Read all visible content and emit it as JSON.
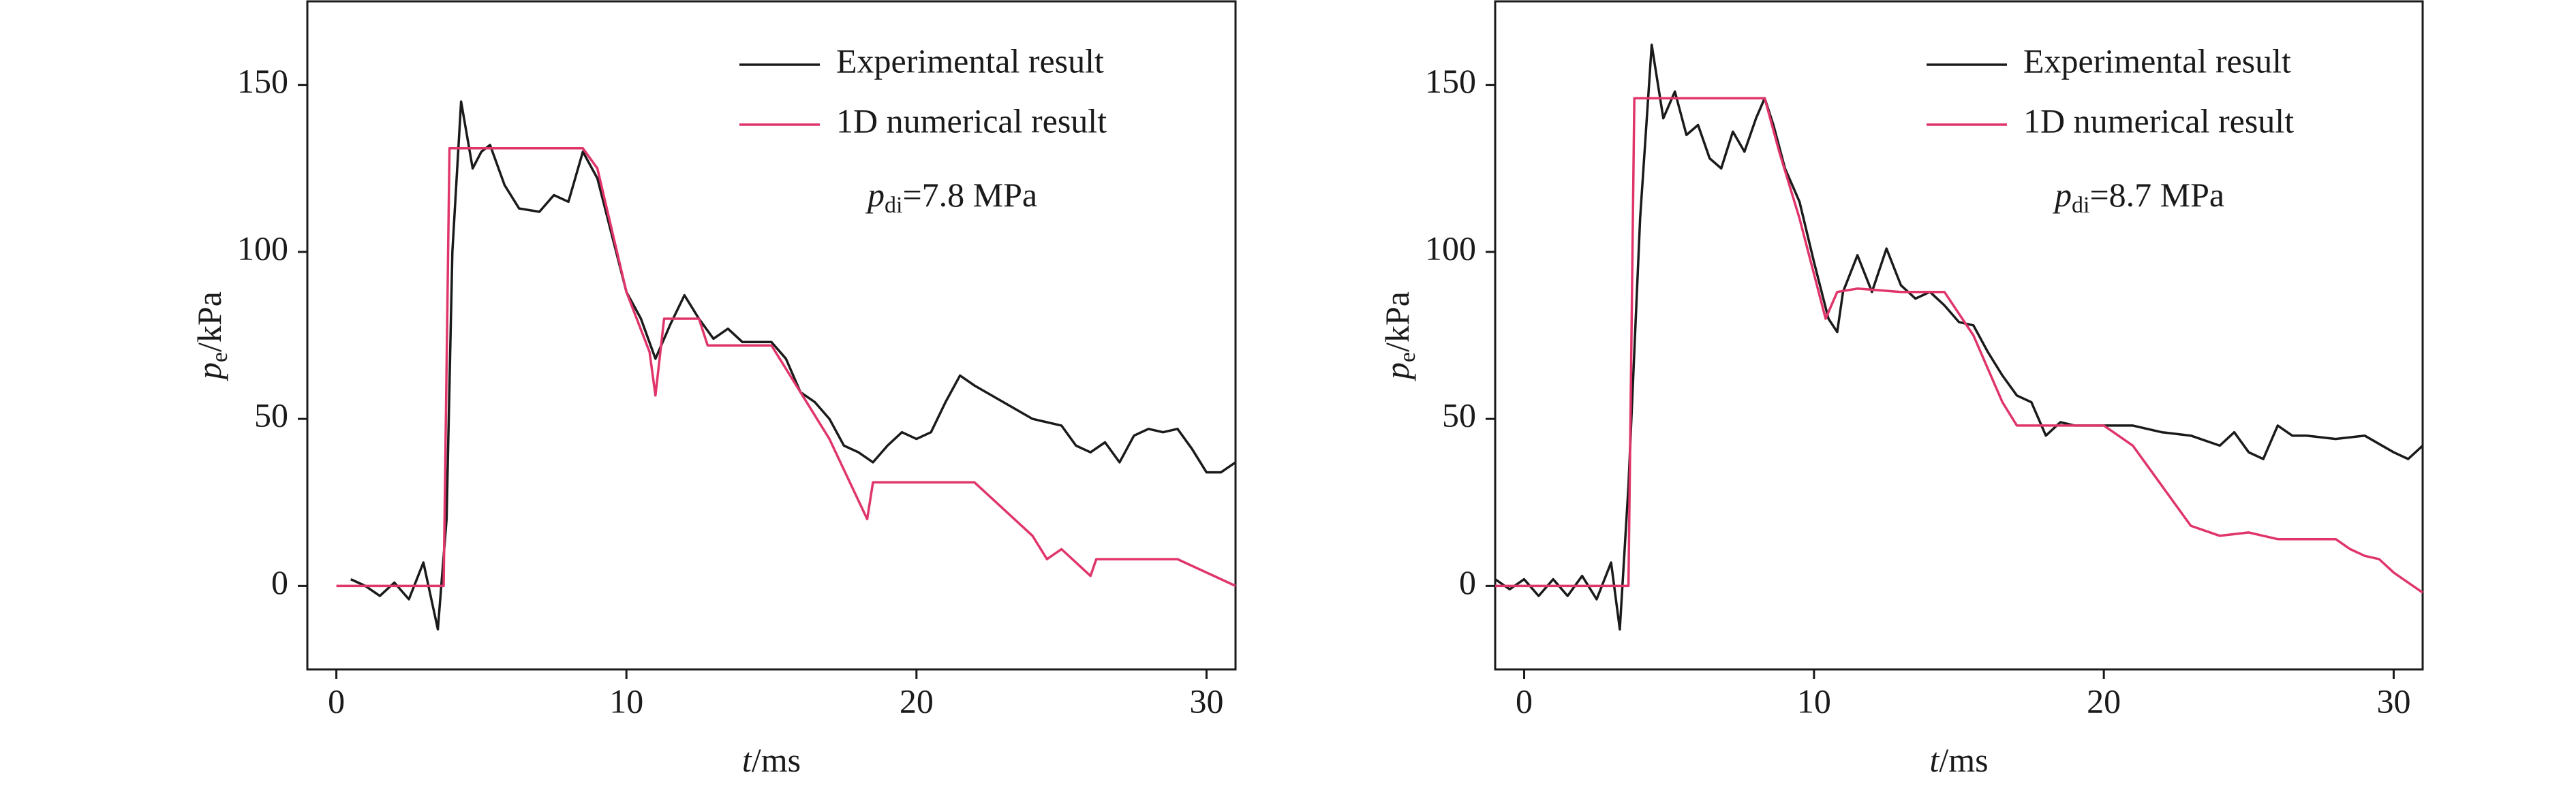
{
  "chart_data": [
    {
      "type": "line",
      "xlabel": [
        "t",
        "/ms"
      ],
      "ylabel": [
        "p",
        "e",
        "/kPa"
      ],
      "annotation": [
        "p",
        "di",
        "=7.8 MPa"
      ],
      "xlim": [
        -1,
        31
      ],
      "ylim": [
        -25,
        175
      ],
      "xticks": [
        0,
        10,
        20,
        30
      ],
      "yticks": [
        0,
        50,
        100,
        150
      ],
      "legend": "upper right",
      "series": [
        {
          "name": "Experimental result",
          "color": "#1a1a1a",
          "x": [
            0.5,
            1,
            1.5,
            2,
            2.5,
            3,
            3.5,
            3.8,
            4,
            4.3,
            4.7,
            5,
            5.3,
            5.8,
            6.3,
            7,
            7.5,
            8,
            8.5,
            9,
            9.5,
            10,
            10.5,
            11,
            11.5,
            12,
            12.5,
            13,
            13.5,
            14,
            15,
            15.5,
            16,
            16.5,
            17,
            17.5,
            18,
            18.5,
            19,
            19.5,
            20,
            20.5,
            21,
            21.5,
            22,
            23,
            24,
            25,
            25.5,
            26,
            26.5,
            27,
            27.5,
            28,
            28.5,
            29,
            29.5,
            30,
            30.5,
            31
          ],
          "values": [
            2,
            0,
            -3,
            1,
            -4,
            7,
            -13,
            20,
            100,
            145,
            125,
            130,
            132,
            120,
            113,
            112,
            117,
            115,
            130,
            122,
            105,
            88,
            80,
            68,
            78,
            87,
            80,
            74,
            77,
            73,
            73,
            68,
            58,
            55,
            50,
            42,
            40,
            37,
            42,
            46,
            44,
            46,
            55,
            63,
            60,
            55,
            50,
            48,
            42,
            40,
            43,
            37,
            45,
            47,
            46,
            47,
            41,
            34,
            34,
            37
          ]
        },
        {
          "name": "1D numerical result",
          "color": "#e0356a",
          "x": [
            0,
            3.7,
            3.9,
            8.5,
            9,
            10,
            10.8,
            11,
            11.3,
            12.5,
            12.8,
            15,
            16,
            17,
            18.3,
            18.5,
            20,
            22,
            24,
            24.5,
            25,
            26,
            26.2,
            29,
            31
          ],
          "values": [
            0,
            0,
            131,
            131,
            125,
            88,
            70,
            57,
            80,
            80,
            72,
            72,
            58,
            44,
            20,
            31,
            31,
            31,
            15,
            8,
            11,
            3,
            8,
            8,
            0
          ]
        }
      ]
    },
    {
      "type": "line",
      "xlabel": [
        "t",
        "/ms"
      ],
      "ylabel": [
        "p",
        "e",
        "/kPa"
      ],
      "annotation": [
        "p",
        "di",
        "=8.7 MPa"
      ],
      "xlim": [
        -1,
        31
      ],
      "ylim": [
        -25,
        175
      ],
      "xticks": [
        0,
        10,
        20,
        30
      ],
      "yticks": [
        0,
        50,
        100,
        150
      ],
      "legend": "upper right",
      "series": [
        {
          "name": "Experimental result",
          "color": "#1a1a1a",
          "x": [
            -1,
            -0.5,
            0,
            0.5,
            1,
            1.5,
            2,
            2.5,
            3,
            3.3,
            3.6,
            4,
            4.4,
            4.8,
            5.2,
            5.6,
            6,
            6.4,
            6.8,
            7.2,
            7.6,
            8,
            8.3,
            8.6,
            9,
            9.5,
            10,
            10.5,
            10.8,
            11,
            11.5,
            12,
            12.5,
            13,
            13.5,
            14,
            14.5,
            15,
            15.5,
            16,
            16.5,
            17,
            17.5,
            18,
            18.5,
            19,
            20,
            21,
            22,
            23,
            24,
            24.5,
            25,
            25.5,
            26,
            26.5,
            27,
            28,
            29,
            30,
            30.5,
            31
          ],
          "values": [
            2,
            -1,
            2,
            -3,
            2,
            -3,
            3,
            -4,
            7,
            -13,
            30,
            110,
            162,
            140,
            148,
            135,
            138,
            128,
            125,
            136,
            130,
            140,
            146,
            138,
            125,
            115,
            97,
            80,
            76,
            88,
            99,
            88,
            101,
            90,
            86,
            88,
            84,
            79,
            78,
            70,
            63,
            57,
            55,
            45,
            49,
            48,
            48,
            48,
            46,
            45,
            42,
            46,
            40,
            38,
            48,
            45,
            45,
            44,
            45,
            40,
            38,
            42
          ]
        },
        {
          "name": "1D numerical result",
          "color": "#e0356a",
          "x": [
            -1,
            3.6,
            3.8,
            8.3,
            8.8,
            9.5,
            10.4,
            10.8,
            11.5,
            13,
            14.5,
            15.5,
            16.5,
            17,
            18,
            20,
            21,
            22,
            23,
            24,
            25,
            26,
            27,
            28,
            28.5,
            29,
            29.5,
            30,
            31
          ],
          "values": [
            0,
            0,
            146,
            146,
            130,
            110,
            80,
            88,
            89,
            88,
            88,
            75,
            55,
            48,
            48,
            48,
            42,
            30,
            18,
            15,
            16,
            14,
            14,
            14,
            11,
            9,
            8,
            4,
            -2
          ]
        }
      ]
    }
  ]
}
